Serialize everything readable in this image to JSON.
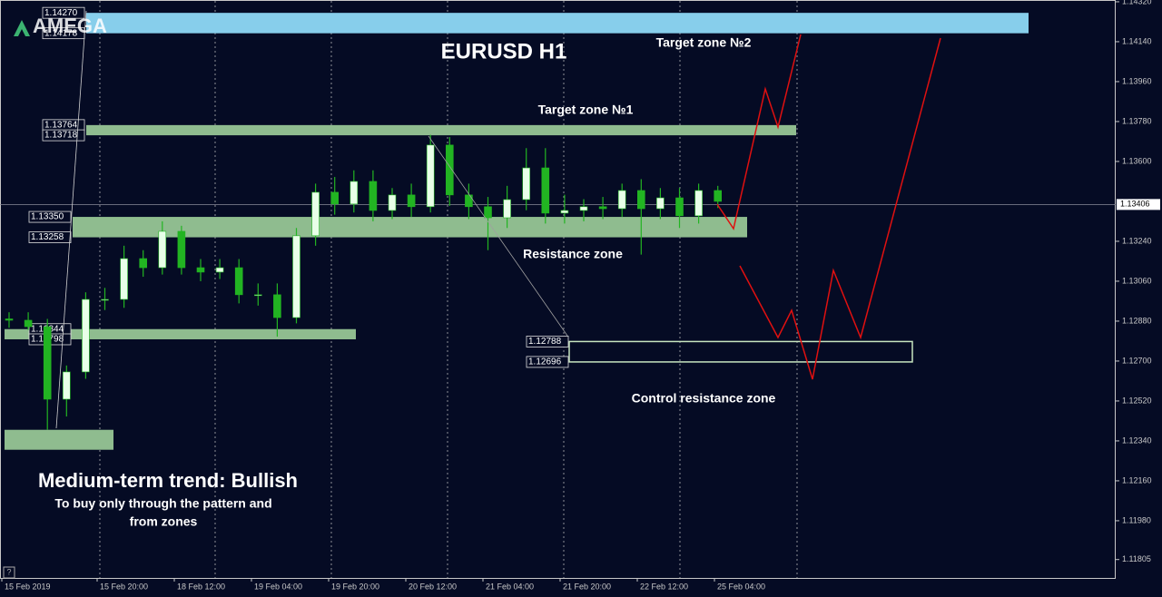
{
  "chart_data": {
    "type": "candlestick",
    "title": "EURUSD H1",
    "brand": "AMEGA",
    "xtick_labels": [
      "15 Feb 2019",
      "15 Feb 20:00",
      "18 Feb 12:00",
      "19 Feb 04:00",
      "19 Feb 20:00",
      "20 Feb 12:00",
      "21 Feb 04:00",
      "21 Feb 20:00",
      "22 Feb 12:00",
      "25 Feb 04:00"
    ],
    "ylim": [
      1.11722,
      1.14328
    ],
    "yticks": [
      {
        "value": 1.1432,
        "label": "1.14320"
      },
      {
        "value": 1.1414,
        "label": "1.14140"
      },
      {
        "value": 1.1396,
        "label": "1.13960"
      },
      {
        "value": 1.1378,
        "label": "1.13780"
      },
      {
        "value": 1.136,
        "label": "1.13600"
      },
      {
        "value": 1.1324,
        "label": "1.13240"
      },
      {
        "value": 1.1306,
        "label": "1.13060"
      },
      {
        "value": 1.1288,
        "label": "1.12880"
      },
      {
        "value": 1.127,
        "label": "1.12700"
      },
      {
        "value": 1.1252,
        "label": "1.12520"
      },
      {
        "value": 1.1234,
        "label": "1.12340"
      },
      {
        "value": 1.1216,
        "label": "1.12160"
      },
      {
        "value": 1.1198,
        "label": "1.11980"
      },
      {
        "value": 1.11805,
        "label": "1.11805"
      }
    ],
    "current_price": 1.13406,
    "grid": true,
    "up_color": "#e8ffe8",
    "down_color": "#22b422",
    "open": [
      1.1289,
      1.12884,
      1.12855,
      1.12528,
      1.12651,
      1.12978,
      1.12978,
      1.13162,
      1.13121,
      1.13285,
      1.13121,
      1.13101,
      1.13121,
      1.12999,
      1.12999,
      1.12896,
      1.13265,
      1.13461,
      1.13408,
      1.1351,
      1.13379,
      1.13449,
      1.13396,
      1.13674,
      1.13449,
      1.13396,
      1.13346,
      1.13428,
      1.13571,
      1.13367,
      1.13379,
      1.13396,
      1.13387,
      1.13469,
      1.13387,
      1.13436,
      1.13355,
      1.13469
    ],
    "high": [
      1.1292,
      1.1292,
      1.1289,
      1.1268,
      1.1301,
      1.1303,
      1.1322,
      1.132,
      1.1333,
      1.1331,
      1.1316,
      1.1316,
      1.1316,
      1.1305,
      1.1305,
      1.133,
      1.135,
      1.1353,
      1.1356,
      1.1356,
      1.1348,
      1.135,
      1.1372,
      1.1371,
      1.135,
      1.1344,
      1.1349,
      1.1366,
      1.1366,
      1.1345,
      1.1343,
      1.1344,
      1.135,
      1.1352,
      1.1348,
      1.1348,
      1.135,
      1.1349
    ],
    "low": [
      1.1285,
      1.1284,
      1.1239,
      1.1245,
      1.1262,
      1.1293,
      1.1294,
      1.1308,
      1.1309,
      1.1309,
      1.1306,
      1.1307,
      1.1296,
      1.1295,
      1.1281,
      1.1287,
      1.1322,
      1.1336,
      1.1337,
      1.1333,
      1.1334,
      1.1335,
      1.1337,
      1.134,
      1.1334,
      1.132,
      1.133,
      1.1338,
      1.1332,
      1.1332,
      1.1333,
      1.1334,
      1.1335,
      1.1318,
      1.1334,
      1.133,
      1.1332,
      1.1339
    ],
    "close": [
      1.12884,
      1.12855,
      1.12528,
      1.12651,
      1.12978,
      1.12978,
      1.13162,
      1.13121,
      1.13285,
      1.13121,
      1.13101,
      1.13121,
      1.12999,
      1.12999,
      1.12896,
      1.13265,
      1.13461,
      1.13408,
      1.1351,
      1.13379,
      1.13449,
      1.13396,
      1.13674,
      1.13449,
      1.13396,
      1.13346,
      1.13428,
      1.13571,
      1.13367,
      1.13379,
      1.13396,
      1.13387,
      1.13469,
      1.13387,
      1.13436,
      1.13355,
      1.13469,
      1.1342
    ],
    "zones": [
      {
        "top": {
          "value": 1.1427,
          "label": "1.14270"
        },
        "bottom": {
          "value": 1.14178,
          "label": "1.14178"
        },
        "color": "#87ceeb"
      },
      {
        "top": {
          "value": 1.13764,
          "label": "1.13764"
        },
        "bottom": {
          "value": 1.13718,
          "label": "1.13718"
        },
        "color": "#8fbc8f"
      },
      {
        "top": {
          "value": 1.1335,
          "label": "1.13350"
        },
        "bottom": {
          "value": 1.13258,
          "label": "1.13258"
        },
        "color": "#8fbc8f"
      },
      {
        "top": {
          "value": 1.12844,
          "label": "1.12844"
        },
        "bottom": {
          "value": 1.12798,
          "label": "1.12798"
        },
        "color": "#8fbc8f"
      },
      {
        "top": {
          "value": 1.1239,
          "label": null
        },
        "bottom": {
          "value": 1.123,
          "label": null
        },
        "color": "#8fbc8f"
      },
      {
        "top": {
          "value": 1.12788,
          "label": "1.12788"
        },
        "bottom": {
          "value": 1.12696,
          "label": "1.12696"
        },
        "color": "#c8e6c0"
      }
    ],
    "annotations": [
      "Target zone №2",
      "Target zone №1",
      "Resistance zone",
      "Control resistance zone",
      "Medium-term trend: Bullish",
      "To buy only through the pattern  and",
      "from zones"
    ]
  }
}
